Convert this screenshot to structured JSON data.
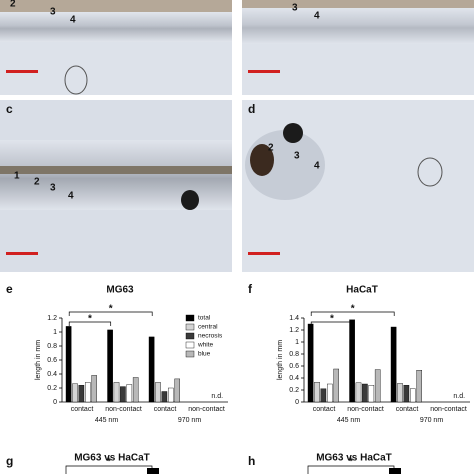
{
  "images": [
    {
      "label": null,
      "markers": [
        "2",
        "3",
        "4"
      ]
    },
    {
      "label": null,
      "markers": [
        "3",
        "4"
      ]
    },
    {
      "label": "c",
      "markers": [
        "1",
        "2",
        "3",
        "4"
      ]
    },
    {
      "label": "d",
      "markers": [
        "2",
        "3",
        "4"
      ]
    }
  ],
  "chart_data": [
    {
      "type": "bar",
      "panel": "e",
      "title": "MG63",
      "y_label": "length in mm",
      "categories": [
        "contact",
        "non-contact",
        "contact",
        "non-contact"
      ],
      "group_labels": [
        "445 nm",
        "970 nm"
      ],
      "series": [
        {
          "name": "total",
          "color": "#000000",
          "values": [
            1.08,
            1.03,
            0.93,
            null
          ]
        },
        {
          "name": "central",
          "color": "#d4d4d4",
          "values": [
            0.26,
            0.28,
            0.28,
            null
          ]
        },
        {
          "name": "necrosis",
          "color": "#3a3a3a",
          "values": [
            0.24,
            0.22,
            0.15,
            null
          ]
        },
        {
          "name": "white",
          "color": "#ffffff",
          "values": [
            0.28,
            0.25,
            0.2,
            null
          ]
        },
        {
          "name": "blue",
          "color": "#b8b8b8",
          "values": [
            0.38,
            0.35,
            0.33,
            null
          ]
        }
      ],
      "ylim": [
        0,
        1.2
      ],
      "yticks": [
        0,
        0.2,
        0.4,
        0.6,
        0.8,
        1,
        1.2
      ],
      "significance": [
        "*",
        "*"
      ],
      "annotation": "n.d.",
      "legend": "top-right"
    },
    {
      "type": "bar",
      "panel": "f",
      "title": "HaCaT",
      "y_label": "length in mm",
      "categories": [
        "contact",
        "non-contact",
        "contact",
        "non-contact"
      ],
      "group_labels": [
        "445 nm",
        "970 nm"
      ],
      "series": [
        {
          "name": "total",
          "color": "#000000",
          "values": [
            1.3,
            1.37,
            1.25,
            null
          ]
        },
        {
          "name": "central",
          "color": "#d4d4d4",
          "values": [
            0.33,
            0.32,
            0.31,
            null
          ]
        },
        {
          "name": "necrosis",
          "color": "#3a3a3a",
          "values": [
            0.22,
            0.3,
            0.28,
            null
          ]
        },
        {
          "name": "white",
          "color": "#ffffff",
          "values": [
            0.3,
            0.28,
            0.22,
            null
          ]
        },
        {
          "name": "blue",
          "color": "#b8b8b8",
          "values": [
            0.55,
            0.54,
            0.53,
            null
          ]
        }
      ],
      "ylim": [
        0,
        1.4
      ],
      "yticks": [
        0,
        0.2,
        0.4,
        0.6,
        0.8,
        1,
        1.2,
        1.4
      ],
      "significance": [
        "*",
        "*"
      ],
      "annotation": "n.d.",
      "legend": "none"
    }
  ],
  "bottom": [
    {
      "panel": "g",
      "title": "MG63 vs HaCaT",
      "significance": "*"
    },
    {
      "panel": "h",
      "title": "MG63 vs HaCaT",
      "significance": "*"
    }
  ]
}
